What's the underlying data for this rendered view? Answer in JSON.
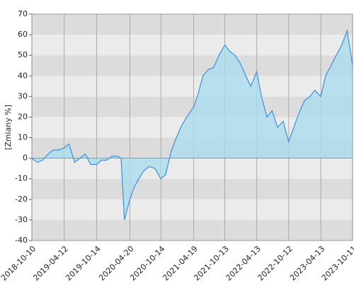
{
  "chart_data": {
    "type": "area",
    "ylabel": "[Zmiany %]",
    "x": [
      "2018-10-10",
      "2018-11-10",
      "2018-12-10",
      "2019-01-10",
      "2019-02-10",
      "2019-03-10",
      "2019-04-12",
      "2019-05-10",
      "2019-06-10",
      "2019-07-10",
      "2019-08-10",
      "2019-09-10",
      "2019-10-14",
      "2019-11-10",
      "2019-12-10",
      "2020-01-10",
      "2020-02-10",
      "2020-03-01",
      "2020-03-20",
      "2020-04-20",
      "2020-05-10",
      "2020-06-10",
      "2020-07-10",
      "2020-08-10",
      "2020-09-10",
      "2020-10-14",
      "2020-11-10",
      "2020-12-10",
      "2021-01-10",
      "2021-02-10",
      "2021-03-10",
      "2021-04-19",
      "2021-05-10",
      "2021-06-10",
      "2021-07-10",
      "2021-08-10",
      "2021-09-10",
      "2021-10-13",
      "2021-11-10",
      "2021-12-10",
      "2022-01-10",
      "2022-02-10",
      "2022-03-10",
      "2022-04-13",
      "2022-05-10",
      "2022-06-10",
      "2022-07-10",
      "2022-08-10",
      "2022-09-10",
      "2022-10-12",
      "2022-11-10",
      "2022-12-10",
      "2023-01-10",
      "2023-02-10",
      "2023-03-10",
      "2023-04-13",
      "2023-05-10",
      "2023-06-10",
      "2023-07-10",
      "2023-08-10",
      "2023-09-10",
      "2023-10-11"
    ],
    "values": [
      0,
      -2,
      -1,
      2,
      4,
      4,
      5,
      7,
      -2,
      0,
      2,
      -3,
      -3,
      -1,
      -1,
      1,
      1,
      0,
      -30,
      -20,
      -15,
      -10,
      -6,
      -4,
      -5,
      -10,
      -8,
      3,
      10,
      16,
      20,
      25,
      30,
      40,
      43,
      44,
      50,
      55,
      52,
      50,
      46,
      40,
      35,
      42,
      30,
      20,
      23,
      15,
      18,
      8,
      15,
      22,
      28,
      30,
      33,
      30,
      40,
      45,
      50,
      55,
      62,
      45
    ],
    "line_color": "#3d8fe0",
    "fill_color": "#aadcec",
    "xlim": [
      "2018-10-10",
      "2023-10-11"
    ],
    "xticks": [
      "2018-10-10",
      "2019-04-12",
      "2019-10-14",
      "2020-04-20",
      "2020-10-14",
      "2021-04-19",
      "2021-10-13",
      "2022-04-13",
      "2022-10-12",
      "2023-04-13",
      "2023-10-11"
    ],
    "ylim": [
      -40,
      70
    ],
    "yticks": [
      -40,
      -30,
      -20,
      -10,
      0,
      10,
      20,
      30,
      40,
      50,
      60,
      70
    ],
    "band_colors": [
      "#dcdcdc",
      "#ebebeb"
    ],
    "grid": true
  }
}
